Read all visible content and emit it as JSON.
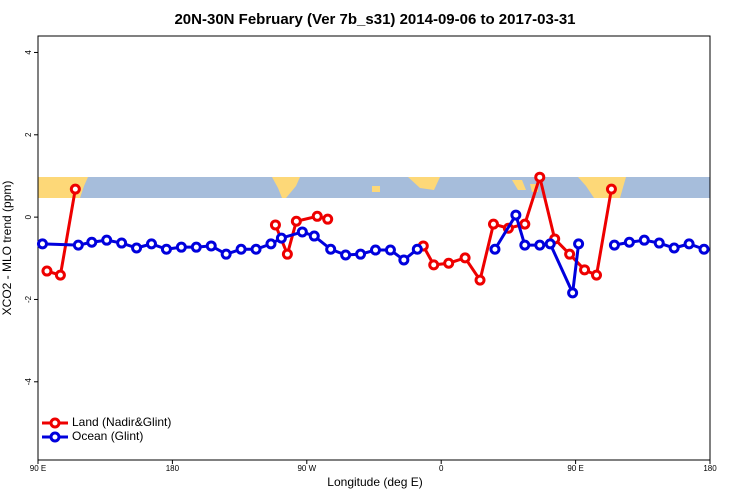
{
  "chart_data": {
    "type": "line",
    "title": "20N-30N February (Ver 7b_s31)   2014-09-06 to 2017-03-31",
    "xlabel": "Longitude (deg E)",
    "ylabel": "XCO2 - MLO trend (ppm)",
    "xlim": [
      90,
      540
    ],
    "xticks": [
      {
        "value": 90,
        "label": "90 E"
      },
      180,
      {
        "value": 270,
        "label": "90 W"
      },
      {
        "value": 360,
        "label": "0"
      },
      {
        "value": 450,
        "label": "90 E"
      },
      {
        "value": 540,
        "label": "180"
      }
    ],
    "ylim": [
      -5.9,
      4.4
    ],
    "yticks": [
      -4,
      -2,
      0,
      2,
      4
    ],
    "legend": "bottom-left",
    "series": [
      {
        "name": "Land (Nadir&Glint)",
        "color": "#ee0000",
        "x": [
          96,
          105,
          115,
          null,
          249,
          257,
          263,
          277,
          284,
          null,
          348,
          355,
          365,
          376,
          386,
          395,
          405,
          416,
          426,
          436,
          446,
          456,
          464,
          474
        ],
        "values": [
          -1.31,
          -1.41,
          0.68,
          null,
          -0.19,
          -0.9,
          -0.1,
          0.02,
          -0.05,
          null,
          -0.7,
          -1.16,
          -1.12,
          -0.99,
          -1.53,
          -0.17,
          -0.27,
          -0.17,
          0.97,
          -0.53,
          -0.9,
          -1.28,
          -1.41,
          0.68
        ]
      },
      {
        "name": "Ocean (Glint)",
        "color": "#0000dd",
        "x": [
          93,
          117,
          126,
          136,
          146,
          156,
          166,
          176,
          186,
          196,
          206,
          216,
          226,
          236,
          246,
          253,
          267,
          275,
          286,
          296,
          306,
          316,
          326,
          335,
          344,
          null,
          396,
          410,
          416,
          426,
          433,
          448,
          452,
          null,
          476,
          486,
          496,
          506,
          516,
          526,
          536
        ],
        "values": [
          -0.65,
          -0.68,
          -0.61,
          -0.56,
          -0.63,
          -0.75,
          -0.65,
          -0.78,
          -0.73,
          -0.73,
          -0.7,
          -0.9,
          -0.78,
          -0.78,
          -0.65,
          -0.51,
          -0.36,
          -0.46,
          -0.78,
          -0.92,
          -0.9,
          -0.8,
          -0.8,
          -1.04,
          -0.78,
          null,
          -0.78,
          0.05,
          -0.68,
          -0.68,
          -0.65,
          -1.84,
          -0.65,
          null,
          -0.68,
          -0.61,
          -0.56,
          -0.63,
          -0.75,
          -0.65,
          -0.78
        ]
      }
    ]
  }
}
